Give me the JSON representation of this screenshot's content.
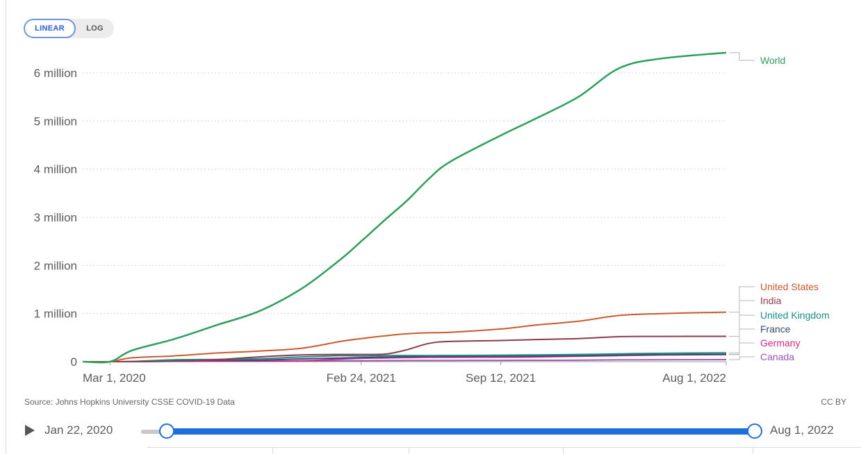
{
  "controls": {
    "linear_label": "LINEAR",
    "log_label": "LOG",
    "active": "LINEAR"
  },
  "footer": {
    "source": "Source: Johns Hopkins University CSSE COVID-19 Data",
    "license": "CC BY"
  },
  "timeline": {
    "start_label": "Jan 22, 2020",
    "end_label": "Aug 1, 2022",
    "range_selected": [
      "Jan 22, 2020",
      "Aug 1, 2022"
    ],
    "accent_color": "#1d6fe0"
  },
  "chart_data": {
    "type": "line",
    "title": "",
    "xlabel": "",
    "ylabel": "",
    "scale": "linear",
    "grid": true,
    "legend": "right, end-of-line labels",
    "xlim": [
      "2020-01-22",
      "2022-08-01"
    ],
    "ylim": [
      0,
      6000000
    ],
    "x_ticks": [
      {
        "date": "2020-03-01",
        "label": "Mar 1, 2020"
      },
      {
        "date": "2021-02-24",
        "label": "Feb 24, 2021"
      },
      {
        "date": "2021-09-12",
        "label": "Sep 12, 2021"
      },
      {
        "date": "2022-08-01",
        "label": "Aug 1, 2022"
      }
    ],
    "y_ticks": [
      {
        "value": 0,
        "label": "0"
      },
      {
        "value": 1000000,
        "label": "1 million"
      },
      {
        "value": 2000000,
        "label": "2 million"
      },
      {
        "value": 3000000,
        "label": "3 million"
      },
      {
        "value": 4000000,
        "label": "4 million"
      },
      {
        "value": 5000000,
        "label": "5 million"
      },
      {
        "value": 6000000,
        "label": "6 million"
      }
    ],
    "x": [
      "2020-01-22",
      "2020-03-01",
      "2020-04-01",
      "2020-06-01",
      "2020-08-01",
      "2020-10-01",
      "2020-12-01",
      "2021-01-25",
      "2021-02-24",
      "2021-04-01",
      "2021-05-01",
      "2021-06-01",
      "2021-07-01",
      "2021-09-12",
      "2021-11-01",
      "2022-01-01",
      "2022-03-01",
      "2022-05-01",
      "2022-08-01"
    ],
    "series": [
      {
        "name": "World",
        "color": "#2e9e5b",
        "values": [
          0,
          0,
          230000,
          470000,
          760000,
          1050000,
          1520000,
          2120000,
          2500000,
          2970000,
          3350000,
          3800000,
          4150000,
          4700000,
          5050000,
          5500000,
          6100000,
          6300000,
          6420000
        ]
      },
      {
        "name": "United States",
        "color": "#c95a2c",
        "values": [
          0,
          0,
          80000,
          120000,
          180000,
          220000,
          280000,
          420000,
          480000,
          540000,
          580000,
          600000,
          610000,
          680000,
          760000,
          840000,
          960000,
          1000000,
          1030000
        ]
      },
      {
        "name": "India",
        "color": "#8a3a4a",
        "values": [
          0,
          0,
          0,
          10000,
          40000,
          100000,
          140000,
          150000,
          150000,
          160000,
          250000,
          380000,
          420000,
          440000,
          460000,
          480000,
          520000,
          525000,
          527000
        ]
      },
      {
        "name": "United Kingdom",
        "color": "#1b8f8c",
        "values": [
          0,
          0,
          5000,
          40000,
          46000,
          60000,
          100000,
          125000,
          120000,
          127000,
          128000,
          128000,
          130000,
          135000,
          142000,
          150000,
          163000,
          175000,
          185000
        ]
      },
      {
        "name": "France",
        "color": "#3a4a6a",
        "values": [
          0,
          0,
          3000,
          29000,
          30000,
          32000,
          58000,
          75000,
          85000,
          95000,
          105000,
          110000,
          112000,
          115000,
          120000,
          125000,
          140000,
          148000,
          153000
        ]
      },
      {
        "name": "Germany",
        "color": "#d12a8a",
        "values": [
          0,
          0,
          1000,
          8500,
          9200,
          9600,
          18000,
          52000,
          70000,
          78000,
          85000,
          90000,
          91000,
          93000,
          97000,
          113000,
          125000,
          138000,
          145000
        ]
      },
      {
        "name": "Canada",
        "color": "#9b59b6",
        "values": [
          0,
          0,
          200,
          7500,
          9000,
          9600,
          12800,
          19000,
          21500,
          23000,
          24500,
          26000,
          26400,
          27400,
          29000,
          30500,
          37000,
          40000,
          43000
        ]
      }
    ]
  }
}
